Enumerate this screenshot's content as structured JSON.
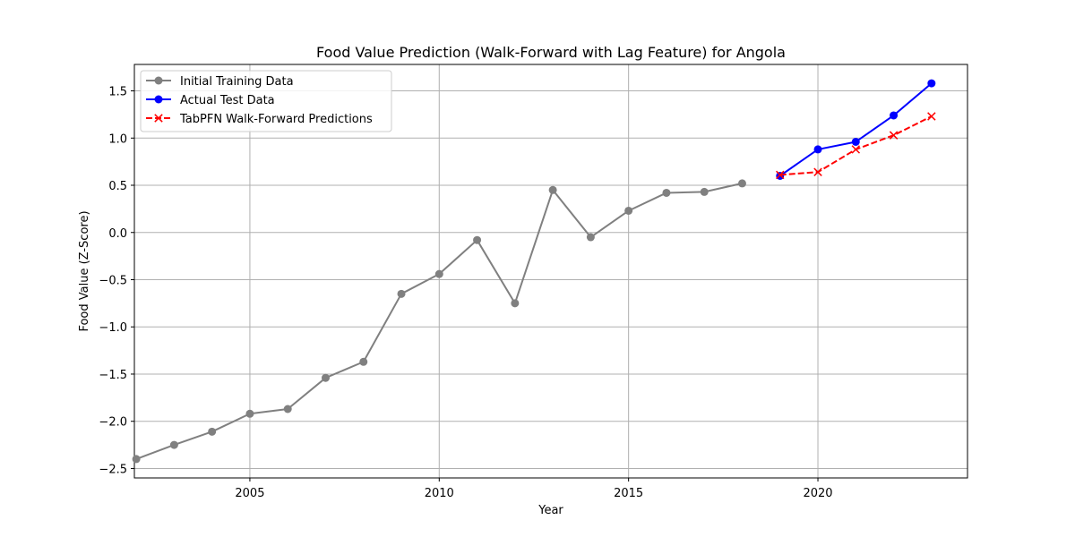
{
  "chart_data": {
    "type": "line",
    "title": "Food Value Prediction (Walk-Forward with Lag Feature) for Angola",
    "xlabel": "Year",
    "ylabel": "Food Value (Z-Score)",
    "xlim": [
      2001.95,
      2023.95
    ],
    "ylim": [
      -2.6,
      1.78
    ],
    "xticks": [
      2005,
      2010,
      2015,
      2020
    ],
    "yticks": [
      -2.5,
      -2.0,
      -1.5,
      -1.0,
      -0.5,
      0.0,
      0.5,
      1.0,
      1.5
    ],
    "ytick_labels": [
      "−2.5",
      "−2.0",
      "−1.5",
      "−1.0",
      "−0.5",
      "0.0",
      "0.5",
      "1.0",
      "1.5"
    ],
    "grid": true,
    "legend_position": "top-left",
    "series": [
      {
        "name": "Initial Training Data",
        "color": "#808080",
        "line_style": "solid",
        "marker": "circle",
        "x": [
          2002,
          2003,
          2004,
          2005,
          2006,
          2007,
          2008,
          2009,
          2010,
          2011,
          2012,
          2013,
          2014,
          2015,
          2016,
          2017,
          2018
        ],
        "y": [
          -2.4,
          -2.25,
          -2.11,
          -1.92,
          -1.87,
          -1.54,
          -1.37,
          -0.65,
          -0.44,
          -0.08,
          -0.75,
          0.45,
          -0.05,
          0.23,
          0.42,
          0.43,
          0.52
        ]
      },
      {
        "name": "Actual Test Data",
        "color": "#0000ff",
        "line_style": "solid",
        "marker": "circle",
        "x": [
          2019,
          2020,
          2021,
          2022,
          2023
        ],
        "y": [
          0.6,
          0.88,
          0.96,
          1.24,
          1.58
        ]
      },
      {
        "name": "TabPFN Walk-Forward Predictions",
        "color": "#ff0000",
        "line_style": "dashed",
        "marker": "x",
        "x": [
          2019,
          2020,
          2021,
          2022,
          2023
        ],
        "y": [
          0.61,
          0.64,
          0.88,
          1.03,
          1.23
        ]
      }
    ]
  }
}
